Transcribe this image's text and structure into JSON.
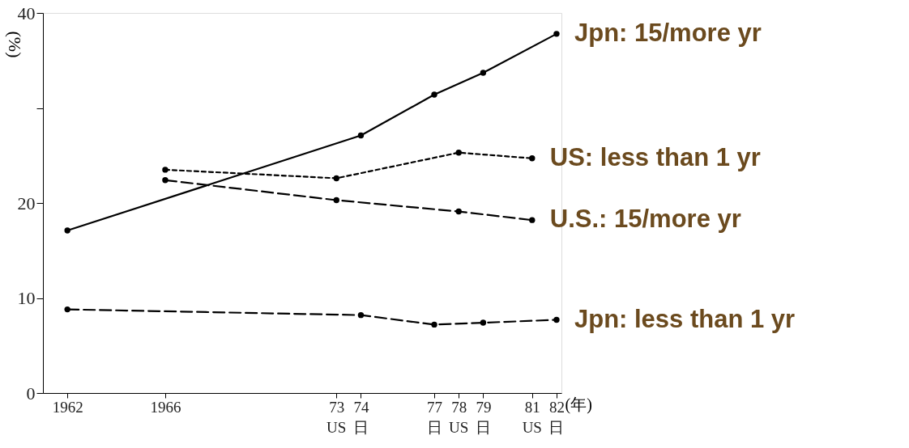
{
  "chart_data": {
    "type": "line",
    "ylabel": "(%)",
    "xlabel": "(年)",
    "xlim": [
      1961,
      1982.2
    ],
    "ylim": [
      0,
      40
    ],
    "xticks": [
      1962,
      1966,
      {
        "value": 1973,
        "label": "73"
      },
      {
        "value": 1974,
        "label": "74"
      },
      {
        "value": 1977,
        "label": "77"
      },
      {
        "value": 1978,
        "label": "78"
      },
      {
        "value": 1979,
        "label": "79"
      },
      {
        "value": 1981,
        "label": "81"
      },
      {
        "value": 1982,
        "label": "82"
      }
    ],
    "annotations": [
      "US",
      "日",
      "日",
      "US",
      "日",
      "US",
      "日"
    ],
    "yticks": [
      0,
      10,
      20,
      {
        "value": 30,
        "label": null
      },
      40
    ],
    "grid": false,
    "legend": false,
    "marker": "circle",
    "series": [
      {
        "name": "Jpn: 15/more yr",
        "color": "#000000",
        "line_style": "solid",
        "x": [
          1962,
          1974,
          1977,
          1979,
          1982
        ],
        "values": [
          17.1,
          27.1,
          31.4,
          33.7,
          37.8
        ]
      },
      {
        "name": "US: less than 1 yr",
        "color": "#000000",
        "line_style": "dotted",
        "x": [
          1966,
          1973,
          1978,
          1981
        ],
        "values": [
          23.5,
          22.6,
          25.3,
          24.7
        ]
      },
      {
        "name": "U.S.: 15/more yr",
        "color": "#000000",
        "line_style": "dashed",
        "x": [
          1966,
          1973,
          1978,
          1981
        ],
        "values": [
          22.4,
          20.3,
          19.1,
          18.2
        ]
      },
      {
        "name": "Jpn: less than 1 yr",
        "color": "#000000",
        "line_style": "dashed",
        "x": [
          1962,
          1974,
          1977,
          1979,
          1982
        ],
        "values": [
          8.8,
          8.2,
          7.2,
          7.4,
          7.7
        ]
      }
    ]
  }
}
